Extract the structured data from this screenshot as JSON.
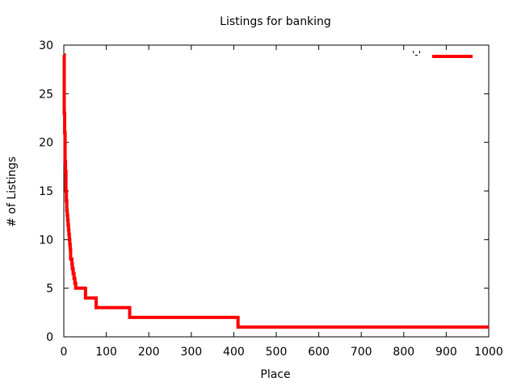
{
  "chart_data": {
    "type": "line",
    "title": "Listings for banking",
    "xlabel": "Place",
    "ylabel": "# of Listings",
    "xlim": [
      0,
      1000
    ],
    "ylim": [
      0,
      30
    ],
    "xticks": [
      0,
      100,
      200,
      300,
      400,
      500,
      600,
      700,
      800,
      900,
      1000
    ],
    "yticks": [
      0,
      5,
      10,
      15,
      20,
      25,
      30
    ],
    "grid": false,
    "legend_position": "top-right",
    "series": [
      {
        "name": "'-'",
        "color": "#ff0000",
        "step": true,
        "x": [
          0,
          1,
          2,
          3,
          4,
          5,
          6,
          7,
          8,
          9,
          10,
          11,
          12,
          13,
          14,
          15,
          16,
          18,
          19,
          20,
          22,
          24,
          26,
          28,
          31,
          51,
          76,
          155,
          410,
          1000
        ],
        "y": [
          29,
          23,
          21,
          18,
          17,
          15,
          14,
          13,
          12.5,
          12,
          11.5,
          11,
          10.5,
          10,
          9.5,
          9,
          8,
          8,
          7.5,
          7,
          6.5,
          6,
          5.5,
          5,
          5,
          4,
          3,
          2,
          1,
          1
        ]
      }
    ]
  }
}
